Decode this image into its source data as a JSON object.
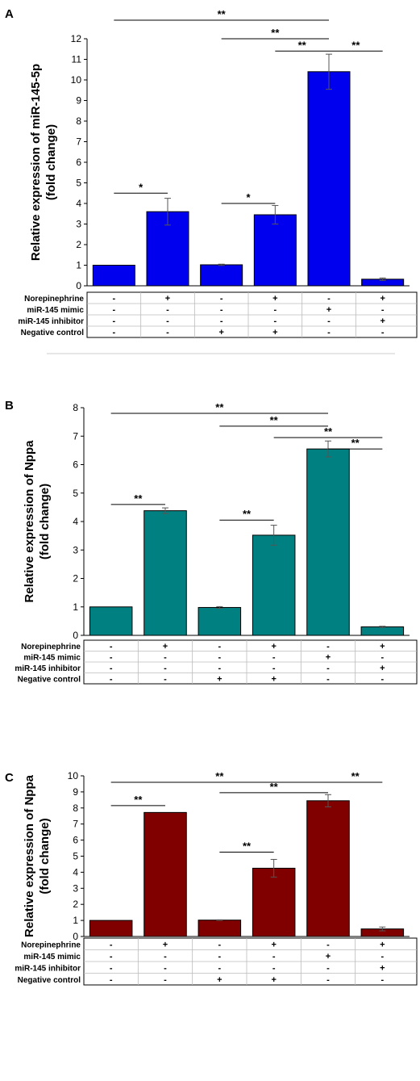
{
  "chart_data": [
    {
      "type": "bar",
      "panel_label": "A",
      "ylabel": "Relative expression of miR-145-5p\n(fold change)",
      "ylim": [
        0,
        12
      ],
      "yticks": [
        0,
        1,
        2,
        3,
        4,
        5,
        6,
        7,
        8,
        9,
        10,
        11,
        12
      ],
      "bar_color": "#0000ee",
      "values": [
        1.0,
        3.6,
        1.02,
        3.45,
        10.4,
        0.32
      ],
      "errors": [
        0,
        0.65,
        0.03,
        0.45,
        0.85,
        0.06
      ],
      "significance": [
        {
          "from": 0,
          "to": 4,
          "y": 12.9,
          "label": "**"
        },
        {
          "from": 2,
          "to": 4,
          "y": 12.0,
          "label": "**"
        },
        {
          "from": 3,
          "to": 4,
          "y": 11.4,
          "label": "**"
        },
        {
          "from": 4,
          "to": 5,
          "y": 11.4,
          "label": "**"
        },
        {
          "from": 0,
          "to": 1,
          "y": 4.5,
          "label": "*"
        },
        {
          "from": 2,
          "to": 3,
          "y": 4.0,
          "label": "*"
        }
      ],
      "conditions": [
        {
          "name": "Norepinephrine",
          "values": [
            "-",
            "+",
            "-",
            "+",
            "-",
            "+"
          ]
        },
        {
          "name": "miR-145 mimic",
          "values": [
            "-",
            "-",
            "-",
            "-",
            "+",
            "-"
          ]
        },
        {
          "name": "miR-145 inhibitor",
          "values": [
            "-",
            "-",
            "-",
            "-",
            "-",
            "+"
          ]
        },
        {
          "name": "Negative control",
          "values": [
            "-",
            "-",
            "+",
            "+",
            "-",
            "-"
          ]
        }
      ]
    },
    {
      "type": "bar",
      "panel_label": "B",
      "ylabel": "Relative expression of Nppa\n(fold change)",
      "ylim": [
        0,
        8
      ],
      "yticks": [
        0,
        1,
        2,
        3,
        4,
        5,
        6,
        7,
        8
      ],
      "bar_color": "#008080",
      "values": [
        1.0,
        4.38,
        0.98,
        3.52,
        6.55,
        0.3
      ],
      "errors": [
        0,
        0.1,
        0.03,
        0.35,
        0.28,
        0.02
      ],
      "significance": [
        {
          "from": 0,
          "to": 4,
          "y": 7.8,
          "label": "**"
        },
        {
          "from": 2,
          "to": 4,
          "y": 7.35,
          "label": "**"
        },
        {
          "from": 3,
          "to": 5,
          "y": 6.95,
          "label": "**"
        },
        {
          "from": 4,
          "to": 5,
          "y": 6.55,
          "label": "**"
        },
        {
          "from": 0,
          "to": 1,
          "y": 4.6,
          "label": "**"
        },
        {
          "from": 2,
          "to": 3,
          "y": 4.05,
          "label": "**"
        }
      ],
      "conditions": [
        {
          "name": "Norepinephrine",
          "values": [
            "-",
            "+",
            "-",
            "+",
            "-",
            "+"
          ]
        },
        {
          "name": "miR-145 mimic",
          "values": [
            "-",
            "-",
            "-",
            "-",
            "+",
            "-"
          ]
        },
        {
          "name": "miR-145 inhibitor",
          "values": [
            "-",
            "-",
            "-",
            "-",
            "-",
            "+"
          ]
        },
        {
          "name": "Negative control",
          "values": [
            "-",
            "-",
            "+",
            "+",
            "-",
            "-"
          ]
        }
      ]
    },
    {
      "type": "bar",
      "panel_label": "C",
      "ylabel": "Relative expression of Nppa\n(fold change)",
      "ylim": [
        0,
        10
      ],
      "yticks": [
        0,
        1,
        2,
        3,
        4,
        5,
        6,
        7,
        8,
        9,
        10
      ],
      "bar_color": "#800000",
      "values": [
        1.0,
        7.72,
        1.02,
        4.25,
        8.45,
        0.47
      ],
      "errors": [
        0,
        0,
        0.02,
        0.55,
        0.38,
        0.12
      ],
      "significance": [
        {
          "from": 0,
          "to": 4,
          "y": 9.6,
          "label": "**"
        },
        {
          "from": 2,
          "to": 4,
          "y": 8.95,
          "label": "**"
        },
        {
          "from": 4,
          "to": 5,
          "y": 9.6,
          "label": "**"
        },
        {
          "from": 0,
          "to": 1,
          "y": 8.15,
          "label": "**"
        },
        {
          "from": 2,
          "to": 3,
          "y": 5.25,
          "label": "**"
        }
      ],
      "conditions": [
        {
          "name": "Norepinephrine",
          "values": [
            "-",
            "+",
            "-",
            "+",
            "-",
            "+"
          ]
        },
        {
          "name": "miR-145 mimic",
          "values": [
            "-",
            "-",
            "-",
            "-",
            "+",
            "-"
          ]
        },
        {
          "name": "miR-145 inhibitor",
          "values": [
            "-",
            "-",
            "-",
            "-",
            "-",
            "+"
          ]
        },
        {
          "name": "Negative control",
          "values": [
            "-",
            "-",
            "+",
            "+",
            "-",
            "-"
          ]
        }
      ]
    }
  ]
}
